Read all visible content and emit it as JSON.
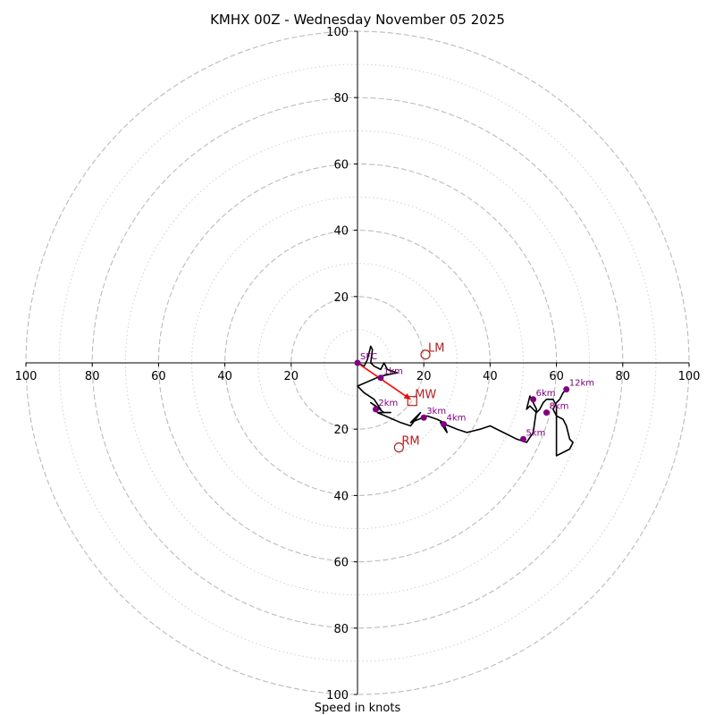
{
  "chart_data": {
    "type": "hodograph",
    "title": "KMHX 00Z - Wednesday November 05 2025",
    "xlabel": "Speed in knots",
    "max_speed": 100,
    "rings_major": [
      20,
      40,
      60,
      80,
      100
    ],
    "rings_minor": [
      10,
      30,
      50,
      70,
      90
    ],
    "x_tick_labels": [
      "100",
      "80",
      "60",
      "40",
      "20",
      "",
      "20",
      "40",
      "60",
      "80",
      "100"
    ],
    "x_tick_values": [
      -100,
      -80,
      -60,
      -40,
      -20,
      0,
      20,
      40,
      60,
      80,
      100
    ],
    "y_tick_labels_top": [
      "100",
      "80",
      "60",
      "40",
      "20"
    ],
    "y_tick_labels_bottom": [
      "20",
      "40",
      "60",
      "80",
      "100"
    ],
    "trace": [
      [
        0,
        0
      ],
      [
        2,
        -1
      ],
      [
        3,
        1
      ],
      [
        4,
        5
      ],
      [
        4.5,
        4
      ],
      [
        4,
        0
      ],
      [
        5,
        -1
      ],
      [
        7,
        -2
      ],
      [
        8,
        0
      ],
      [
        9,
        -2
      ],
      [
        12,
        -3
      ],
      [
        7,
        -4
      ],
      [
        0,
        -7
      ],
      [
        2,
        -9
      ],
      [
        5,
        -11
      ],
      [
        7,
        -14
      ],
      [
        4,
        -12
      ],
      [
        8,
        -15
      ],
      [
        10,
        -15
      ],
      [
        6,
        -15
      ],
      [
        13,
        -18
      ],
      [
        16,
        -19
      ],
      [
        19,
        -15
      ],
      [
        16,
        -18
      ],
      [
        21,
        -16
      ],
      [
        24,
        -17
      ],
      [
        26,
        -18
      ],
      [
        27,
        -21
      ],
      [
        25,
        -18
      ],
      [
        30,
        -20
      ],
      [
        33,
        -21
      ],
      [
        37,
        -20
      ],
      [
        40,
        -19
      ],
      [
        44,
        -21
      ],
      [
        48,
        -23
      ],
      [
        51,
        -24
      ],
      [
        53,
        -21
      ],
      [
        54,
        -14
      ],
      [
        53,
        -12
      ],
      [
        52,
        -10
      ],
      [
        51,
        -14
      ],
      [
        52,
        -13
      ],
      [
        54,
        -15
      ],
      [
        55,
        -14
      ],
      [
        56,
        -12
      ],
      [
        57,
        -11
      ],
      [
        59,
        -11
      ],
      [
        60,
        -13
      ],
      [
        60,
        -28
      ],
      [
        64,
        -26
      ],
      [
        65,
        -24
      ],
      [
        64,
        -23
      ],
      [
        63,
        -19
      ],
      [
        62,
        -17
      ],
      [
        60,
        -16
      ],
      [
        59,
        -14
      ],
      [
        60,
        -12
      ],
      [
        61,
        -11
      ],
      [
        62,
        -9
      ],
      [
        63,
        -8
      ]
    ],
    "height_markers": [
      {
        "label": "SFC",
        "u": 0,
        "v": 0
      },
      {
        "label": "1km",
        "u": 7,
        "v": -4.5
      },
      {
        "label": "2km",
        "u": 5.5,
        "v": -14
      },
      {
        "label": "3km",
        "u": 20,
        "v": -16.5
      },
      {
        "label": "4km",
        "u": 26,
        "v": -18.5
      },
      {
        "label": "5km",
        "u": 50,
        "v": -23
      },
      {
        "label": "6km",
        "u": 53,
        "v": -11
      },
      {
        "label": "8km",
        "u": 57,
        "v": -15
      },
      {
        "label": "12km",
        "u": 63,
        "v": -8
      }
    ],
    "storm_motion": [
      {
        "label": "LM",
        "symbol": "circle",
        "u": 20.5,
        "v": 2.5
      },
      {
        "label": "RM",
        "symbol": "circle",
        "u": 12.5,
        "v": -25.5
      },
      {
        "label": "MW",
        "symbol": "square",
        "u": 16.5,
        "v": -11.5
      }
    ],
    "shear_arrow": {
      "from_u": 0,
      "from_v": 0,
      "to_u": 16,
      "to_v": -11
    },
    "colors": {
      "trace": "#000000",
      "markers": "#800080",
      "storm_motion": "#b22222",
      "shear_arrow": "#ff0000",
      "rings": "#bbbbbb"
    }
  }
}
